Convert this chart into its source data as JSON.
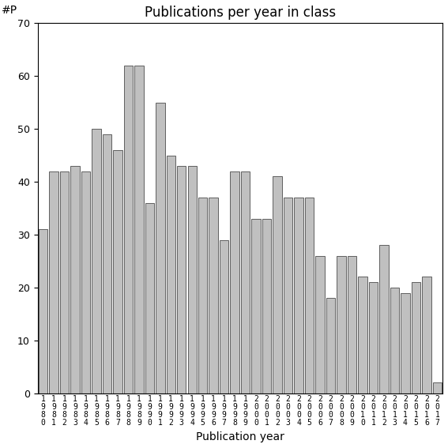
{
  "title": "Publications per year in class",
  "xlabel": "Publication year",
  "ylabel": "#P",
  "years": [
    1980,
    1981,
    1982,
    1983,
    1984,
    1985,
    1986,
    1987,
    1988,
    1989,
    1990,
    1991,
    1992,
    1993,
    1994,
    1995,
    1996,
    1997,
    1998,
    1999,
    2000,
    2001,
    2002,
    2003,
    2004,
    2005,
    2006,
    2007,
    2008,
    2009,
    2010,
    2011,
    2012,
    2013,
    2014,
    2015,
    2016,
    2017
  ],
  "values": [
    31,
    42,
    42,
    43,
    42,
    50,
    49,
    46,
    62,
    62,
    36,
    55,
    45,
    43,
    43,
    37,
    37,
    29,
    42,
    42,
    33,
    33,
    41,
    37,
    37,
    37,
    26,
    18,
    26,
    26,
    22,
    21,
    28,
    20,
    19,
    21,
    22,
    2
  ],
  "bar_color": "#c0c0c0",
  "bar_edge_color": "#606060",
  "ylim": [
    0,
    70
  ],
  "yticks": [
    0,
    10,
    20,
    30,
    40,
    50,
    60,
    70
  ],
  "title_fontsize": 12,
  "xlabel_fontsize": 10,
  "ylabel_fontsize": 10,
  "ytick_fontsize": 9,
  "xtick_fontsize": 7
}
